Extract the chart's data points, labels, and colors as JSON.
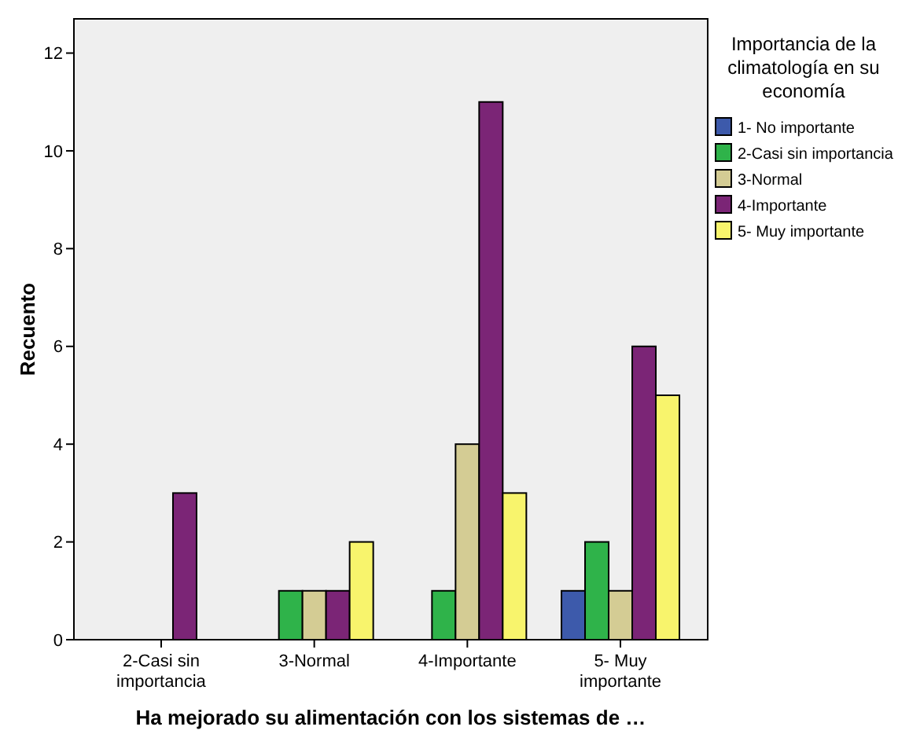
{
  "chart_data": {
    "type": "bar",
    "xlabel": "Ha mejorado su alimentación con los sistemas de …",
    "ylabel": "Recuento",
    "legend_title": "Importancia de la climatología en su economía",
    "legend": "right",
    "categories": [
      "2-Casi sin importancia",
      "3-Normal",
      "4-Importante",
      "5- Muy importante"
    ],
    "ylim": [
      0,
      12.7
    ],
    "yticks": [
      0,
      2,
      4,
      6,
      8,
      10,
      12
    ],
    "grid": false,
    "series": [
      {
        "name": "1- No importante",
        "color": "#3d5aab",
        "values": [
          null,
          null,
          null,
          1
        ]
      },
      {
        "name": "2-Casi sin importancia",
        "color": "#2fb34a",
        "values": [
          null,
          1,
          1,
          2
        ]
      },
      {
        "name": "3-Normal",
        "color": "#d4cc94",
        "values": [
          null,
          1,
          4,
          1
        ]
      },
      {
        "name": "4-Importante",
        "color": "#7b2576",
        "values": [
          3,
          1,
          11,
          6
        ]
      },
      {
        "name": "5- Muy importante",
        "color": "#f8f46c",
        "values": [
          null,
          2,
          3,
          5
        ]
      }
    ]
  }
}
